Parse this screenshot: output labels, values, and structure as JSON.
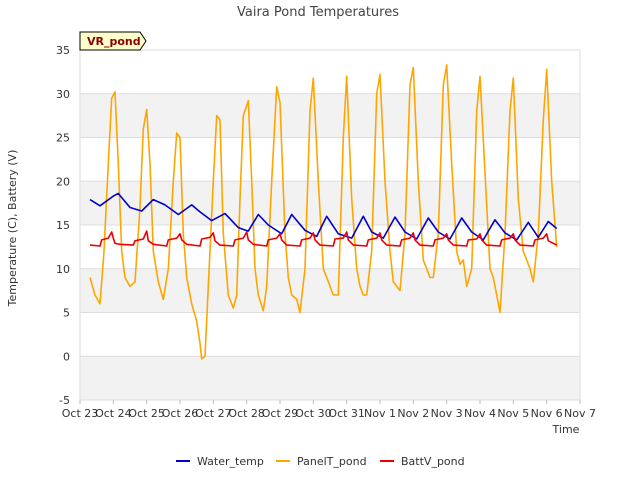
{
  "chart_data": {
    "type": "line",
    "title": "Vaira Pond Temperatures",
    "xlabel": "Time",
    "ylabel": "Temperature (C), Battery (V)",
    "badge": "VR_pond",
    "ylim": [
      -5,
      35
    ],
    "yticks": [
      -5,
      0,
      5,
      10,
      15,
      20,
      25,
      30,
      35
    ],
    "xlim": [
      0,
      15
    ],
    "xticks": [
      "Oct 23",
      "Oct 24",
      "Oct 25",
      "Oct 26",
      "Oct 27",
      "Oct 28",
      "Oct 29",
      "Oct 30",
      "Oct 31",
      "Nov 1",
      "Nov 2",
      "Nov 3",
      "Nov 4",
      "Nov 5",
      "Nov 6",
      "Nov 7"
    ],
    "grid": true,
    "legend_position": "bottom",
    "series": [
      {
        "name": "Water_temp",
        "color": "#0000cc",
        "x": [
          0.3,
          0.6,
          1.0,
          1.15,
          1.5,
          1.85,
          2.2,
          2.55,
          2.95,
          3.35,
          3.6,
          3.95,
          4.35,
          4.75,
          5.05,
          5.35,
          5.65,
          6.05,
          6.35,
          6.75,
          7.1,
          7.4,
          7.75,
          8.15,
          8.5,
          8.75,
          9.1,
          9.45,
          9.75,
          10.1,
          10.45,
          10.75,
          11.1,
          11.45,
          11.75,
          12.1,
          12.45,
          12.75,
          13.1,
          13.45,
          13.75,
          14.05,
          14.3
        ],
        "y": [
          17.9,
          17.2,
          18.3,
          18.6,
          17.0,
          16.6,
          17.9,
          17.3,
          16.2,
          17.3,
          16.5,
          15.5,
          16.3,
          14.7,
          14.3,
          16.2,
          15.0,
          14.0,
          16.2,
          14.4,
          13.7,
          16.0,
          14.0,
          13.5,
          16.0,
          14.2,
          13.5,
          15.9,
          14.2,
          13.4,
          15.8,
          14.2,
          13.4,
          15.8,
          14.2,
          13.3,
          15.6,
          14.1,
          13.3,
          15.3,
          13.6,
          15.4,
          14.6
        ]
      },
      {
        "name": "PanelT_pond",
        "color": "#ffa500",
        "x": [
          0.3,
          0.45,
          0.6,
          0.72,
          0.85,
          0.95,
          1.05,
          1.15,
          1.25,
          1.35,
          1.5,
          1.65,
          1.8,
          1.9,
          2.0,
          2.1,
          2.2,
          2.35,
          2.5,
          2.65,
          2.8,
          2.9,
          3.0,
          3.1,
          3.2,
          3.35,
          3.5,
          3.6,
          3.65,
          3.75,
          3.85,
          4.0,
          4.1,
          4.2,
          4.3,
          4.45,
          4.6,
          4.7,
          4.8,
          4.9,
          5.05,
          5.15,
          5.25,
          5.35,
          5.5,
          5.6,
          5.75,
          5.9,
          6.0,
          6.15,
          6.25,
          6.35,
          6.5,
          6.6,
          6.75,
          6.9,
          7.0,
          7.15,
          7.3,
          7.4,
          7.5,
          7.6,
          7.75,
          7.9,
          8.0,
          8.15,
          8.3,
          8.4,
          8.5,
          8.6,
          8.75,
          8.9,
          9.0,
          9.15,
          9.3,
          9.4,
          9.5,
          9.6,
          9.75,
          9.9,
          10.0,
          10.15,
          10.3,
          10.4,
          10.5,
          10.6,
          10.75,
          10.9,
          11.0,
          11.15,
          11.3,
          11.4,
          11.5,
          11.6,
          11.75,
          11.9,
          12.0,
          12.15,
          12.3,
          12.4,
          12.5,
          12.6,
          12.75,
          12.9,
          13.0,
          13.15,
          13.3,
          13.4,
          13.5,
          13.6,
          13.75,
          13.9,
          14.0,
          14.15,
          14.3
        ],
        "y": [
          9.0,
          7.0,
          6.0,
          12.0,
          22.0,
          29.5,
          30.2,
          22.0,
          12.0,
          9.0,
          8.0,
          8.5,
          17.0,
          26.0,
          28.2,
          22.0,
          12.0,
          8.5,
          6.5,
          10.0,
          20.0,
          25.5,
          25.0,
          14.0,
          9.0,
          6.0,
          4.0,
          1.5,
          -0.3,
          0.0,
          8.0,
          20.0,
          27.5,
          27.0,
          14.0,
          7.0,
          5.5,
          7.0,
          18.0,
          27.5,
          29.2,
          20.0,
          10.0,
          7.0,
          5.2,
          8.0,
          20.0,
          30.8,
          29.0,
          14.0,
          9.0,
          7.0,
          6.5,
          5.0,
          10.0,
          28.0,
          31.8,
          20.0,
          10.0,
          9.0,
          8.0,
          7.0,
          7.0,
          25.0,
          32.0,
          18.0,
          10.0,
          8.0,
          7.0,
          7.0,
          12.0,
          30.0,
          32.2,
          20.0,
          12.0,
          8.5,
          8.0,
          7.5,
          14.0,
          31.0,
          33.0,
          20.0,
          11.0,
          10.0,
          9.0,
          9.0,
          14.0,
          31.0,
          33.3,
          22.0,
          12.0,
          10.5,
          11.0,
          8.0,
          10.0,
          28.0,
          32.0,
          21.0,
          10.0,
          9.0,
          7.0,
          5.0,
          14.0,
          28.0,
          31.8,
          18.0,
          12.0,
          11.0,
          10.0,
          8.5,
          14.0,
          27.0,
          32.8,
          20.0,
          12.5
        ]
      },
      {
        "name": "BattV_pond",
        "color": "#ee0000",
        "x": [
          0.3,
          0.6,
          0.65,
          0.85,
          0.95,
          1.0,
          1.05,
          1.2,
          1.6,
          1.65,
          1.9,
          2.0,
          2.05,
          2.2,
          2.6,
          2.65,
          2.9,
          3.0,
          3.05,
          3.2,
          3.6,
          3.65,
          3.9,
          4.0,
          4.05,
          4.2,
          4.6,
          4.65,
          4.9,
          5.0,
          5.05,
          5.2,
          5.6,
          5.65,
          5.9,
          6.0,
          6.05,
          6.2,
          6.6,
          6.65,
          6.9,
          7.0,
          7.05,
          7.2,
          7.6,
          7.65,
          7.9,
          8.0,
          8.05,
          8.2,
          8.6,
          8.65,
          8.9,
          9.0,
          9.05,
          9.2,
          9.6,
          9.65,
          9.9,
          10.0,
          10.05,
          10.2,
          10.6,
          10.65,
          10.9,
          11.0,
          11.05,
          11.2,
          11.6,
          11.65,
          11.9,
          12.0,
          12.05,
          12.2,
          12.6,
          12.65,
          12.9,
          13.0,
          13.05,
          13.2,
          13.6,
          13.65,
          13.9,
          14.0,
          14.05,
          14.3
        ],
        "y": [
          12.7,
          12.6,
          13.3,
          13.5,
          14.2,
          13.5,
          12.9,
          12.8,
          12.7,
          13.2,
          13.4,
          14.3,
          13.2,
          12.8,
          12.6,
          13.3,
          13.5,
          14.0,
          13.3,
          12.8,
          12.6,
          13.4,
          13.6,
          14.1,
          13.2,
          12.7,
          12.6,
          13.3,
          13.5,
          14.2,
          13.3,
          12.8,
          12.6,
          13.3,
          13.5,
          14.0,
          13.3,
          12.7,
          12.6,
          13.3,
          13.5,
          14.1,
          13.3,
          12.7,
          12.6,
          13.4,
          13.5,
          14.2,
          13.3,
          12.7,
          12.6,
          13.3,
          13.5,
          14.1,
          13.3,
          12.7,
          12.6,
          13.3,
          13.5,
          14.1,
          13.3,
          12.7,
          12.6,
          13.3,
          13.5,
          14.0,
          13.3,
          12.7,
          12.6,
          13.3,
          13.4,
          14.0,
          13.3,
          12.7,
          12.6,
          13.3,
          13.5,
          14.0,
          13.3,
          12.7,
          12.6,
          13.3,
          13.5,
          14.0,
          13.2,
          12.7
        ]
      }
    ]
  }
}
